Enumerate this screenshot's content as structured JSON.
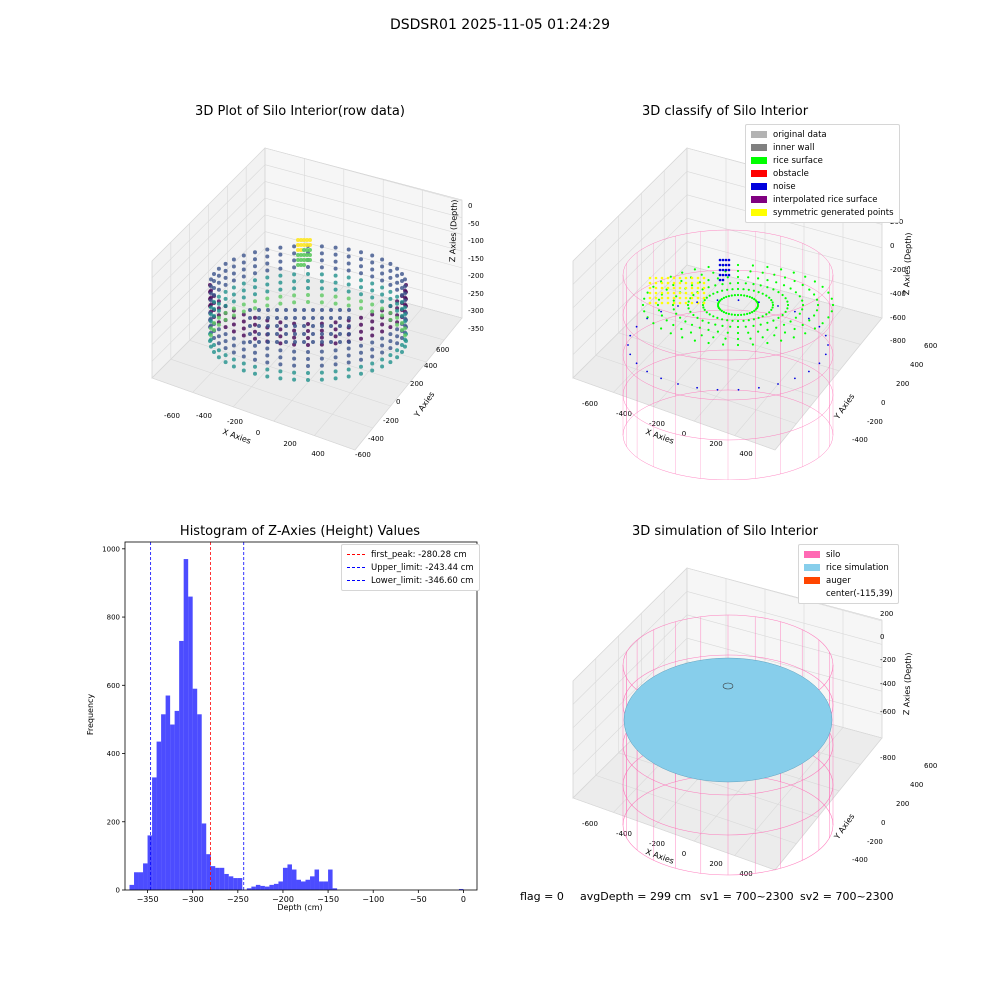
{
  "suptitle": "DSDSR01 2025-11-05 01:24:29",
  "panel_raw": {
    "title": "3D Plot of Silo Interior(row data)",
    "xlabel": "X Axies",
    "ylabel": "Y Axies",
    "zlabel": "Z Axies (Depth)",
    "xticks": [
      "-600",
      "-400",
      "-200",
      "0",
      "200",
      "400"
    ],
    "yticks": [
      "-600",
      "-400",
      "-200",
      "0",
      "200",
      "400",
      "600"
    ],
    "zticks": [
      "0",
      "-50",
      "-100",
      "-150",
      "-200",
      "-250",
      "-300",
      "-350"
    ],
    "colormap": [
      "#440154",
      "#3b528b",
      "#21918c",
      "#5ec962",
      "#fde725"
    ]
  },
  "panel_classify": {
    "title": "3D classify of Silo Interior",
    "xlabel": "X Axies",
    "ylabel": "Y Axies",
    "zlabel": "Z Axies (Depth)",
    "xticks": [
      "-600",
      "-400",
      "-200",
      "0",
      "200",
      "400"
    ],
    "yticks": [
      "-400",
      "-200",
      "0",
      "200",
      "400",
      "600"
    ],
    "zticks": [
      "200",
      "0",
      "-200",
      "-400",
      "-600",
      "-800"
    ],
    "legend": [
      {
        "label": "original data",
        "color": "#b3b3b3"
      },
      {
        "label": "inner wall",
        "color": "#808080"
      },
      {
        "label": "rice surface",
        "color": "#00ff00"
      },
      {
        "label": "obstacle",
        "color": "#ff0000"
      },
      {
        "label": "noise",
        "color": "#0000dd"
      },
      {
        "label": "interpolated rice surface",
        "color": "#800080"
      },
      {
        "label": "symmetric generated points",
        "color": "#ffff00"
      }
    ]
  },
  "panel_sim": {
    "title": "3D simulation of Silo Interior",
    "xlabel": "X Axies",
    "ylabel": "Y Axies",
    "zlabel": "Z Axies (Depth)",
    "xticks": [
      "-600",
      "-400",
      "-200",
      "0",
      "200",
      "400"
    ],
    "yticks": [
      "-400",
      "-200",
      "0",
      "200",
      "400",
      "600"
    ],
    "zticks": [
      "200",
      "0",
      "-200",
      "-400",
      "-600",
      "-800"
    ],
    "legend": [
      {
        "label": "silo",
        "color": "#ff69b4"
      },
      {
        "label": "rice simulation",
        "color": "#87ceeb"
      },
      {
        "label": "auger",
        "color": "#ff4500"
      },
      {
        "label": "center(-115,39)",
        "color": ""
      }
    ]
  },
  "status": {
    "flag": "flag = 0",
    "avg": "avgDepth = 299 cm",
    "sv1": "sv1 = 700~2300",
    "sv2": "sv2 = 700~2300"
  },
  "chart_data": {
    "type": "bar",
    "title": "Histogram of Z-Axies (Height) Values",
    "xlabel": "Depth (cm)",
    "ylabel": "Frequency",
    "xlim": [
      -375,
      15
    ],
    "ylim": [
      0,
      1020
    ],
    "xticks": [
      -350,
      -300,
      -250,
      -200,
      -150,
      -100,
      -50,
      0
    ],
    "yticks": [
      0,
      200,
      400,
      600,
      800,
      1000
    ],
    "bin_width": 5,
    "bin_starts": [
      -370,
      -365,
      -360,
      -355,
      -350,
      -345,
      -340,
      -335,
      -330,
      -325,
      -320,
      -315,
      -310,
      -305,
      -300,
      -295,
      -290,
      -285,
      -280,
      -275,
      -270,
      -265,
      -260,
      -255,
      -250,
      -245,
      -240,
      -235,
      -230,
      -225,
      -220,
      -215,
      -210,
      -205,
      -200,
      -195,
      -190,
      -185,
      -180,
      -175,
      -170,
      -165,
      -160,
      -155,
      -150,
      -145,
      -140,
      -135,
      -130,
      -125,
      -120,
      -115,
      -110,
      -105,
      -100,
      -95,
      -90,
      -85,
      -80,
      -75,
      -70,
      -65,
      -60,
      -55,
      -50,
      -45,
      -40,
      -35,
      -30,
      -25,
      -20,
      -15,
      -10,
      -5,
      0
    ],
    "counts": [
      15,
      52,
      52,
      78,
      160,
      330,
      435,
      515,
      570,
      485,
      525,
      730,
      970,
      860,
      590,
      515,
      195,
      105,
      70,
      65,
      65,
      47,
      40,
      35,
      35,
      0,
      5,
      10,
      15,
      12,
      10,
      15,
      18,
      25,
      65,
      75,
      60,
      30,
      25,
      30,
      40,
      60,
      25,
      25,
      60,
      5,
      0,
      0,
      0,
      0,
      0,
      0,
      0,
      0,
      0,
      0,
      0,
      0,
      0,
      0,
      0,
      0,
      0,
      0,
      0,
      0,
      0,
      0,
      0,
      0,
      0,
      0,
      0,
      3,
      0
    ],
    "color": "#0000ff",
    "vlines": [
      {
        "label": "first_peak: -280.28 cm",
        "x": -280.28,
        "color": "#ff0000"
      },
      {
        "label": "Upper_limit: -243.44 cm",
        "x": -243.44,
        "color": "#0000ff"
      },
      {
        "label": "Lower_limit: -346.60 cm",
        "x": -346.6,
        "color": "#0000ff"
      }
    ],
    "legend_position": "upper right"
  }
}
